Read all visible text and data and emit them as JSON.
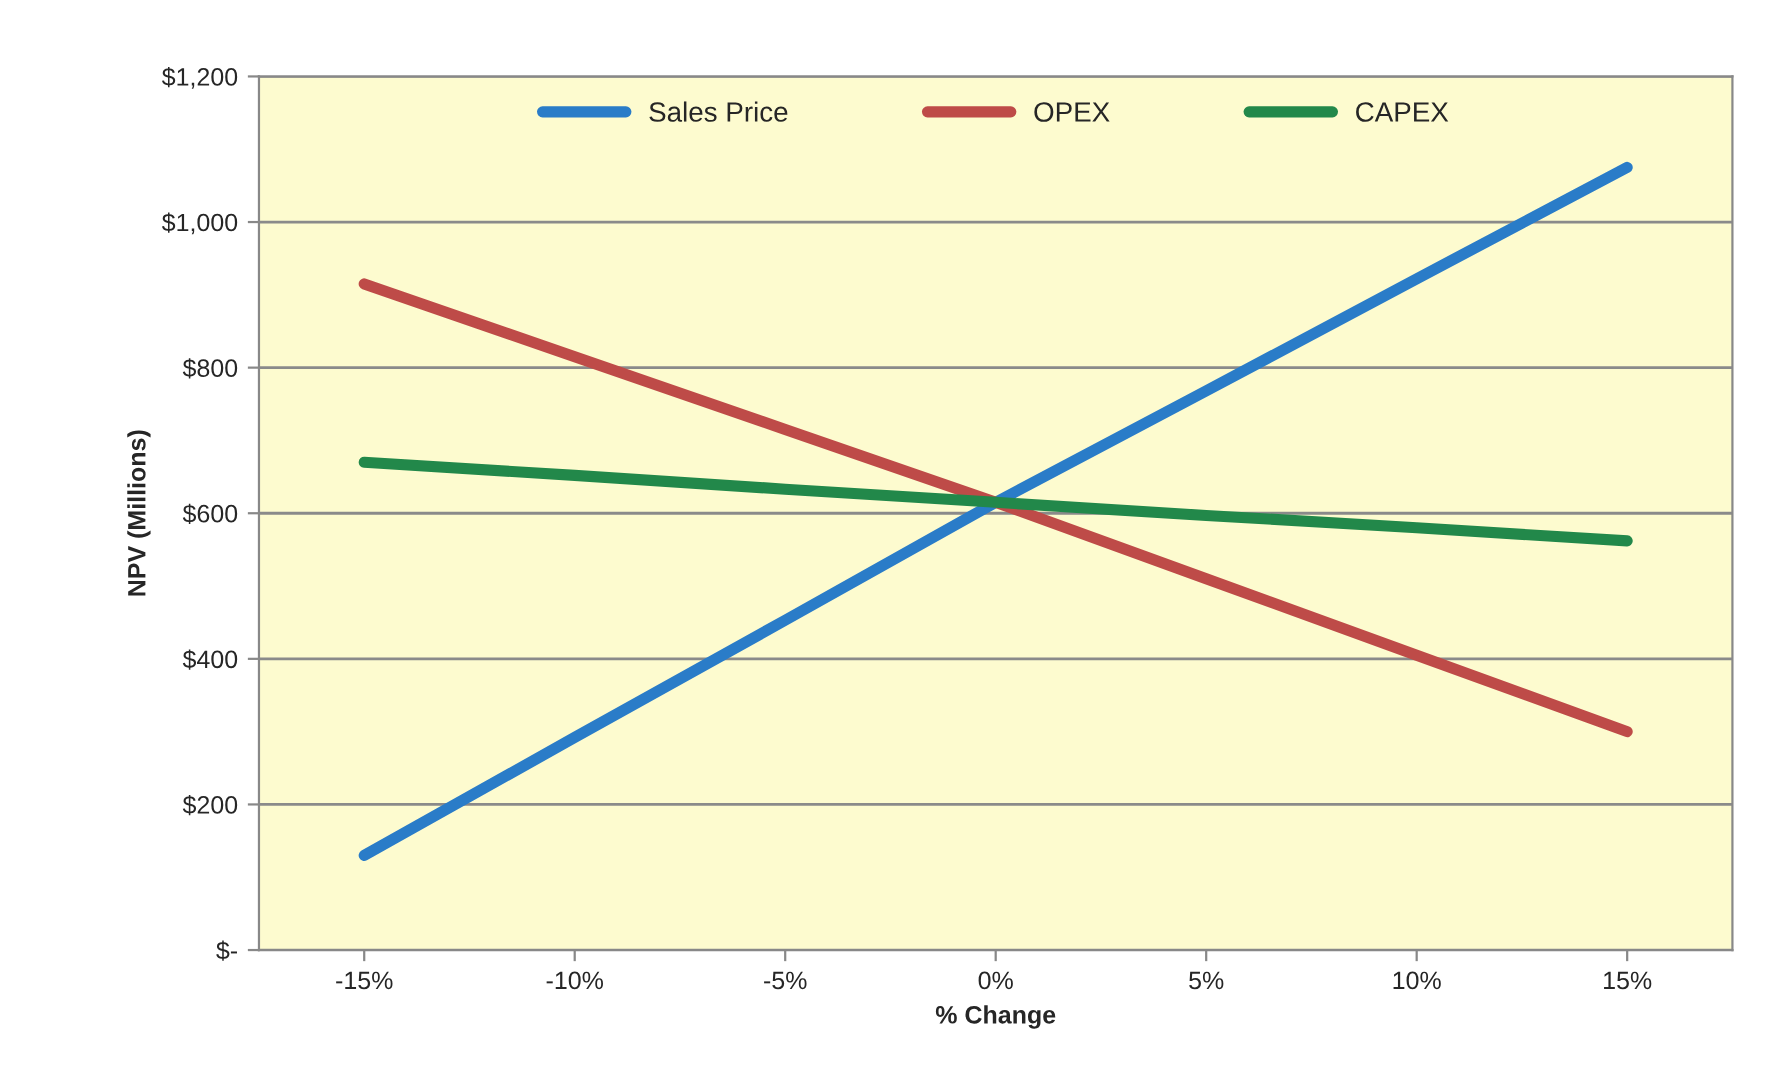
{
  "chart_data": {
    "type": "line",
    "xlabel": "% Change",
    "ylabel": "NPV (Millions)",
    "categories": [
      "-15%",
      "-10%",
      "-5%",
      "0%",
      "5%",
      "10%",
      "15%"
    ],
    "series": [
      {
        "name": "Sales Price",
        "color": "#2a7cc8",
        "values": [
          130,
          292,
          453,
          615,
          768,
          922,
          1075
        ]
      },
      {
        "name": "OPEX",
        "color": "#be4b48",
        "values": [
          915,
          815,
          715,
          615,
          510,
          405,
          300
        ]
      },
      {
        "name": "CAPEX",
        "color": "#22884a",
        "values": [
          670,
          652,
          633,
          615,
          597,
          580,
          562
        ]
      }
    ],
    "ylim": [
      0,
      1200
    ],
    "yticks": [
      {
        "value": 0,
        "label": "$-"
      },
      {
        "value": 200,
        "label": "$200"
      },
      {
        "value": 400,
        "label": "$400"
      },
      {
        "value": 600,
        "label": "$600"
      },
      {
        "value": 800,
        "label": "$800"
      },
      {
        "value": 1000,
        "label": "$1,000"
      },
      {
        "value": 1200,
        "label": "$1,200"
      }
    ],
    "grid": "y",
    "legend": "top",
    "marker": "none",
    "line_style": "solid"
  }
}
